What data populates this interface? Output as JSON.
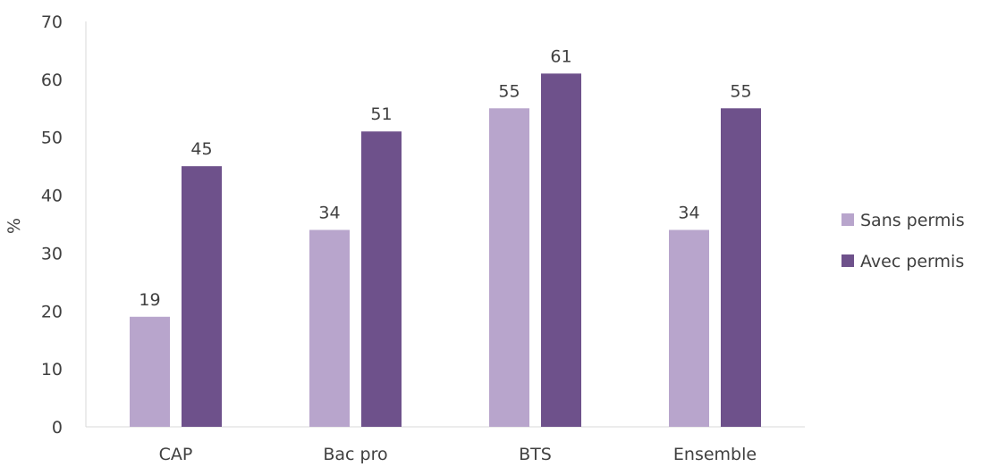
{
  "chart_data": {
    "type": "bar",
    "categories": [
      "CAP",
      "Bac pro",
      "BTS",
      "Ensemble"
    ],
    "series": [
      {
        "name": "Sans permis",
        "values": [
          19,
          34,
          55,
          34
        ],
        "color": "#b8a5cc"
      },
      {
        "name": "Avec permis",
        "values": [
          45,
          51,
          61,
          55
        ],
        "color": "#6e518b"
      }
    ],
    "ylabel": "%",
    "xlabel": "",
    "ylim": [
      0,
      70
    ],
    "yticks": [
      0,
      10,
      20,
      30,
      40,
      50,
      60,
      70
    ],
    "grid": false,
    "legend": "right"
  }
}
